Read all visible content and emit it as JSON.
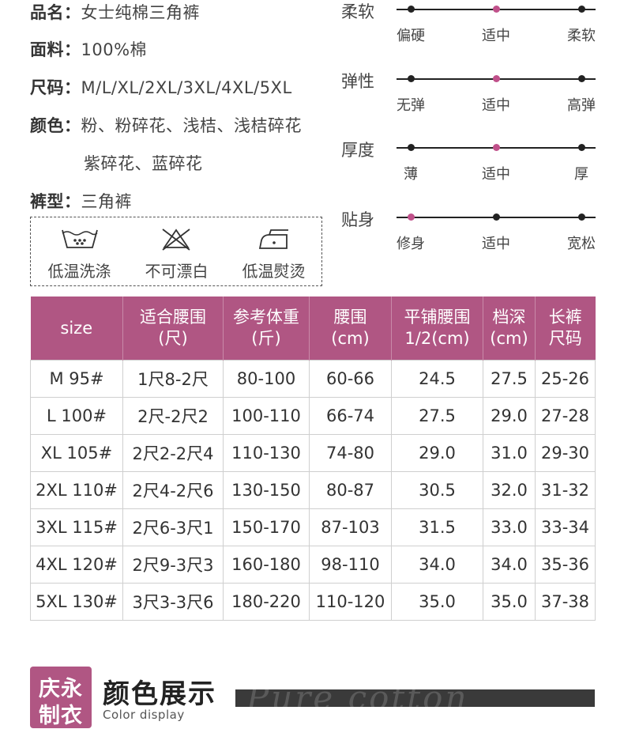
{
  "product": {
    "name_label": "品名：",
    "name_value": "女士纯棉三角裤",
    "fabric_label": "面料：",
    "fabric_value": "100%棉",
    "size_label": "尺码：",
    "size_value": "M/L/XL/2XL/3XL/4XL/5XL",
    "color_label": "颜色：",
    "color_value_line1": "粉、粉碎花、浅桔、浅桔碎花",
    "color_value_line2": "紫碎花、蓝碎花",
    "type_label": "裤型：",
    "type_value": "三角裤"
  },
  "care": [
    {
      "icon": "low-temp-wash-icon",
      "label": "低温洗涤"
    },
    {
      "icon": "no-bleach-icon",
      "label": "不可漂白"
    },
    {
      "icon": "low-temp-iron-icon",
      "label": "低温熨烫"
    }
  ],
  "scales": [
    {
      "title": "柔软",
      "labels": [
        "偏硬",
        "适中",
        "柔软"
      ],
      "active": 1
    },
    {
      "title": "弹性",
      "labels": [
        "无弹",
        "适中",
        "高弹"
      ],
      "active": 1
    },
    {
      "title": "厚度",
      "labels": [
        "薄",
        "适中",
        "厚"
      ],
      "active": 1
    },
    {
      "title": "贴身",
      "labels": [
        "修身",
        "适中",
        "宽松"
      ],
      "active": 0
    }
  ],
  "accent_color": "#b05683",
  "table": {
    "headers": [
      [
        "size"
      ],
      [
        "适合腰围",
        "(尺)"
      ],
      [
        "参考体重",
        "(斤)"
      ],
      [
        "腰围",
        "(cm)"
      ],
      [
        "平铺腰围",
        "1/2(cm)"
      ],
      [
        "档深",
        "(cm)"
      ],
      [
        "长裤",
        "尺码"
      ]
    ],
    "rows": [
      [
        "M 95#",
        "1尺8-2尺",
        "80-100",
        "60-66",
        "24.5",
        "27.5",
        "25-26"
      ],
      [
        "L 100#",
        "2尺-2尺2",
        "100-110",
        "66-74",
        "27.5",
        "29.0",
        "27-28"
      ],
      [
        "XL 105#",
        "2尺2-2尺4",
        "110-130",
        "74-80",
        "29.0",
        "31.0",
        "29-30"
      ],
      [
        "2XL 110#",
        "2尺4-2尺6",
        "130-150",
        "80-87",
        "30.5",
        "32.0",
        "31-32"
      ],
      [
        "3XL 115#",
        "2尺6-3尺1",
        "150-170",
        "87-103",
        "31.5",
        "33.0",
        "33-34"
      ],
      [
        "4XL 120#",
        "2尺9-3尺3",
        "160-180",
        "98-110",
        "34.0",
        "34.0",
        "35-36"
      ],
      [
        "5XL 130#",
        "3尺3-3尺6",
        "180-220",
        "110-120",
        "35.0",
        "35.0",
        "37-38"
      ]
    ]
  },
  "footer": {
    "brand_line1": "庆永",
    "brand_line2": "制衣",
    "title": "颜色展示",
    "subtitle": "Color display",
    "watermark": "Pure cotton"
  }
}
